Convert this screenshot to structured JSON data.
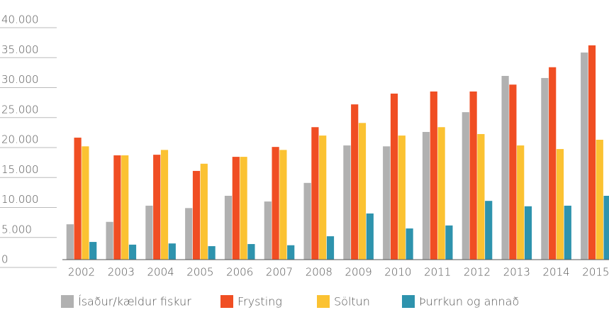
{
  "chart_data": {
    "type": "bar",
    "categories": [
      "2002",
      "2003",
      "2004",
      "2005",
      "2006",
      "2007",
      "2008",
      "2009",
      "2010",
      "2011",
      "2012",
      "2013",
      "2014",
      "2015"
    ],
    "series": [
      {
        "name": "Ísaður/kældur fiskur",
        "color": "#b1b1b1",
        "values": [
          5900,
          6300,
          9000,
          8600,
          10650,
          9700,
          12800,
          19050,
          18900,
          21300,
          24600,
          30650,
          30300,
          34550
        ]
      },
      {
        "name": "Frysting",
        "color": "#f04e23",
        "values": [
          20350,
          17400,
          17500,
          14800,
          17150,
          18800,
          22100,
          25900,
          27700,
          28050,
          28050,
          29200,
          32100,
          35750
        ]
      },
      {
        "name": "Söltun",
        "color": "#fbc232",
        "values": [
          18900,
          17400,
          18300,
          16000,
          17150,
          18300,
          20700,
          22800,
          20700,
          22100,
          20950,
          19050,
          18450,
          20000
        ]
      },
      {
        "name": "Þurrkun og annað",
        "color": "#2e93ad",
        "values": [
          2950,
          2500,
          2700,
          2250,
          2600,
          2400,
          3900,
          7700,
          5200,
          5700,
          9800,
          8900,
          9000,
          10650
        ]
      }
    ],
    "ylim": [
      0,
      40000
    ],
    "yticks": [
      0,
      {
        "value": 5000,
        "label": "5.000"
      },
      {
        "value": 10000,
        "label": "10.000"
      },
      {
        "value": 15000,
        "label": "15.000"
      },
      {
        "value": 20000,
        "label": "20.000"
      },
      {
        "value": 25000,
        "label": "25.000"
      },
      {
        "value": 30000,
        "label": "30.000"
      },
      {
        "value": 35000,
        "label": "35.000"
      },
      {
        "value": 40000,
        "label": "40.000"
      }
    ],
    "grid": true
  }
}
